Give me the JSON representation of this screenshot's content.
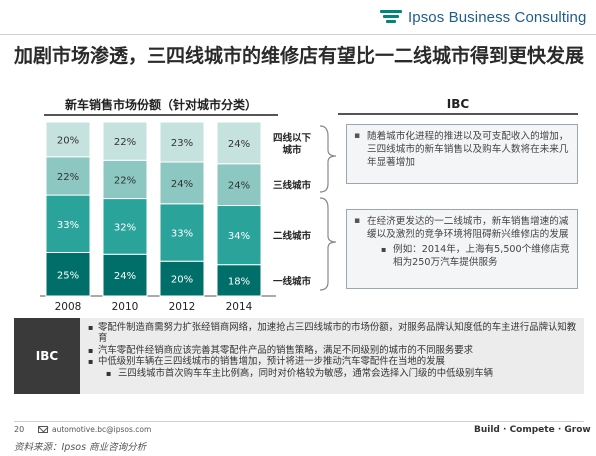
{
  "header": {
    "brand": "Ipsos Business Consulting"
  },
  "title": "加剧市场渗透，三四线城市的维修店有望比一二线城市得到更快发展",
  "chart_data": {
    "type": "bar",
    "stacked": true,
    "percent": true,
    "title": "新车销售市场份额（针对城市分类）",
    "categories": [
      "2008",
      "2010",
      "2012",
      "2014"
    ],
    "series": [
      {
        "name": "一线城市",
        "values": [
          25,
          24,
          20,
          18
        ],
        "labels": [
          "25%",
          "24%",
          "20%",
          "18%"
        ],
        "color": "#006f6a",
        "label_color": "#ffffff"
      },
      {
        "name": "二线城市",
        "values": [
          33,
          32,
          33,
          34
        ],
        "labels": [
          "33%",
          "32%",
          "33%",
          "34%"
        ],
        "color": "#2aa39b",
        "label_color": "#ffffff"
      },
      {
        "name": "三线城市",
        "values": [
          22,
          22,
          24,
          24
        ],
        "labels": [
          "22%",
          "22%",
          "24%",
          "24%"
        ],
        "color": "#8cc7c1",
        "label_color": "#333333"
      },
      {
        "name": "四线以下城市",
        "values": [
          20,
          22,
          23,
          24
        ],
        "labels": [
          "20%",
          "22%",
          "23%",
          "24%"
        ],
        "color": "#c5e2de",
        "label_color": "#333333"
      }
    ],
    "legend_placement": "right",
    "ylim": [
      0,
      100
    ]
  },
  "ibc_panel": {
    "heading": "IBC",
    "box1_text": "随着城市化进程的推进以及可支配收入的增加，三四线城市的新车销售以及购车人数将在未来几年显著增加",
    "box2_text": "在经济更发达的一二线城市，新车销售增速的减缓以及激烈的竞争环境将阻碍新兴维修店的发展",
    "box2_sub": "例如：2014年，上海有5,500个维修店竞相为250万汽车提供服务"
  },
  "bottom": {
    "label": "IBC",
    "items": [
      {
        "text": "零配件制造商需努力扩张经销商网络，加速抢占三四线城市的市场份额，对服务品牌认知度低的车主进行品牌认知教育",
        "level": 1
      },
      {
        "text": "汽车零配件经销商应该完善其零配件产品的销售策略，满足不同级别的城市的不同服务要求",
        "level": 1
      },
      {
        "text": "中低级别车辆在三四线城市的销售增加，预计将进一步推动汽车零配件在当地的发展",
        "level": 1
      },
      {
        "text": "三四线城市首次购车车主比例高，同时对价格较为敏感，通常会选择入门级的中低级别车辆",
        "level": 2
      }
    ]
  },
  "footer": {
    "page": "20",
    "email": "automotive.bc@ipsos.com",
    "tagline": "Build · Compete · Grow",
    "source": "资料来源：Ipsos 商业咨询分析"
  },
  "icons": {
    "email": "envelope-icon",
    "brand": "ipsos-logo-icon"
  }
}
